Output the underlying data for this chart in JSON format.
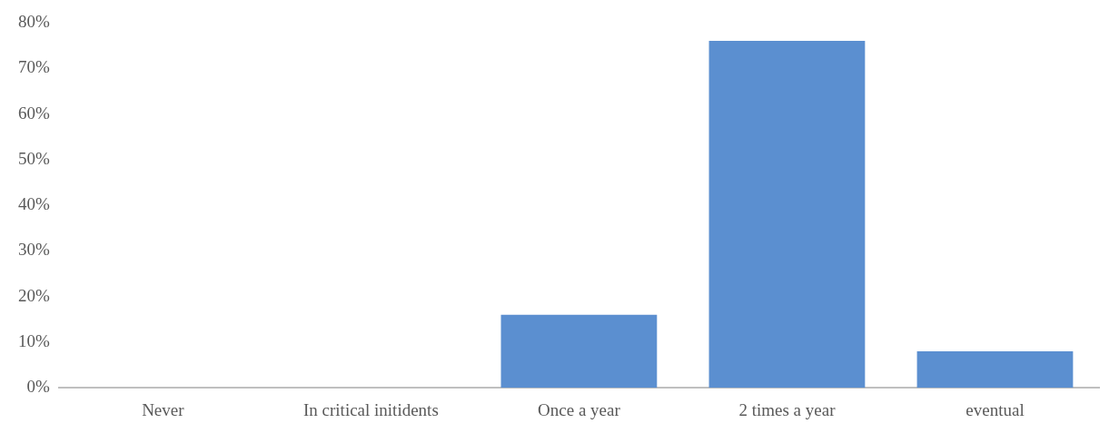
{
  "chart_data": {
    "type": "bar",
    "categories": [
      "Never",
      "In critical initidents",
      "Once a year",
      "2 times a year",
      "eventual"
    ],
    "values": [
      0,
      0,
      16,
      76,
      8
    ],
    "color": "#5b8fd0",
    "ylim": [
      0,
      80
    ],
    "yticks": [
      {
        "value": 0,
        "label": "0%"
      },
      {
        "value": 10,
        "label": "10%"
      },
      {
        "value": 20,
        "label": "20%"
      },
      {
        "value": 30,
        "label": "30%"
      },
      {
        "value": 40,
        "label": "40%"
      },
      {
        "value": 50,
        "label": "50%"
      },
      {
        "value": 60,
        "label": "60%"
      },
      {
        "value": 70,
        "label": "70%"
      },
      {
        "value": 80,
        "label": "80%"
      }
    ],
    "grid": false,
    "legend": false
  }
}
